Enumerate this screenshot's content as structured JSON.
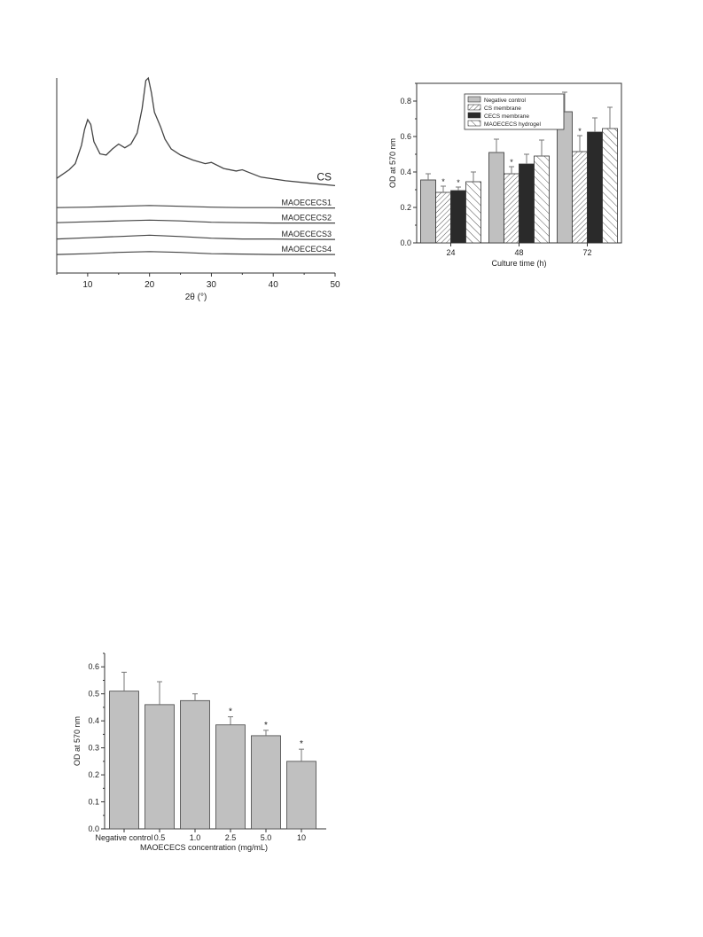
{
  "chart_data": [
    {
      "type": "line",
      "id": "xrd",
      "xlabel": "2θ (°)",
      "ylabel": "",
      "xlim": [
        5,
        50
      ],
      "xticks": [
        10,
        20,
        30,
        40,
        50
      ],
      "grid": false,
      "series": [
        {
          "name": "CS",
          "x": [
            5,
            7,
            8,
            9,
            9.5,
            10,
            10.5,
            11,
            12,
            13,
            14,
            15,
            16,
            17,
            18,
            18.8,
            19.4,
            19.8,
            20.3,
            20.8,
            21.3,
            21.8,
            22.5,
            23.5,
            25,
            27,
            29,
            30,
            32,
            34,
            35,
            36,
            38,
            42,
            46,
            50
          ],
          "y": [
            0.18,
            0.25,
            0.3,
            0.45,
            0.58,
            0.66,
            0.62,
            0.48,
            0.38,
            0.37,
            0.42,
            0.46,
            0.43,
            0.46,
            0.55,
            0.75,
            0.98,
            1.0,
            0.88,
            0.72,
            0.66,
            0.6,
            0.5,
            0.42,
            0.37,
            0.33,
            0.3,
            0.31,
            0.26,
            0.24,
            0.25,
            0.23,
            0.19,
            0.16,
            0.14,
            0.12
          ]
        },
        {
          "name": "MAOECECS1",
          "x": [
            5,
            10,
            15,
            20,
            25,
            30,
            35,
            40,
            45,
            50
          ],
          "y": [
            0.08,
            0.09,
            0.11,
            0.13,
            0.11,
            0.09,
            0.08,
            0.08,
            0.07,
            0.07
          ]
        },
        {
          "name": "MAOECECS2",
          "x": [
            5,
            10,
            15,
            20,
            25,
            30,
            35,
            40,
            45,
            50
          ],
          "y": [
            0.08,
            0.1,
            0.12,
            0.14,
            0.12,
            0.09,
            0.08,
            0.07,
            0.07,
            0.07
          ]
        },
        {
          "name": "MAOECECS3",
          "x": [
            5,
            10,
            15,
            20,
            25,
            30,
            35,
            40,
            45,
            50
          ],
          "y": [
            0.07,
            0.1,
            0.13,
            0.16,
            0.13,
            0.09,
            0.07,
            0.07,
            0.06,
            0.06
          ]
        },
        {
          "name": "MAOECECS4",
          "x": [
            5,
            10,
            15,
            20,
            25,
            30,
            35,
            40,
            45,
            50
          ],
          "y": [
            0.06,
            0.08,
            0.11,
            0.13,
            0.11,
            0.08,
            0.07,
            0.06,
            0.06,
            0.06
          ]
        }
      ]
    },
    {
      "type": "bar",
      "id": "od-time",
      "xlabel": "Culture time (h)",
      "ylabel": "OD at  570 nm",
      "ylim": [
        0,
        0.9
      ],
      "yticks": [
        "0.0",
        "0.2",
        "0.4",
        "0.6",
        "0.8"
      ],
      "categories": [
        "24",
        "48",
        "72"
      ],
      "legend": "top-left",
      "series": [
        {
          "name": "Negative control",
          "values": [
            0.355,
            0.51,
            0.74
          ],
          "errors": [
            0.035,
            0.075,
            0.11
          ],
          "fill": "#c0c0c0",
          "pattern": "solid",
          "stars": [
            false,
            false,
            false
          ]
        },
        {
          "name": "CS membrane",
          "values": [
            0.285,
            0.39,
            0.515
          ],
          "errors": [
            0.035,
            0.04,
            0.09
          ],
          "fill": "#ffffff",
          "pattern": "hatch-dense",
          "stars": [
            true,
            true,
            true
          ]
        },
        {
          "name": "CECS membrane",
          "values": [
            0.295,
            0.445,
            0.625
          ],
          "errors": [
            0.02,
            0.055,
            0.08
          ],
          "fill": "#2a2a2a",
          "pattern": "solid",
          "stars": [
            true,
            false,
            false
          ]
        },
        {
          "name": "MAOECECS hydrogel",
          "values": [
            0.345,
            0.49,
            0.645
          ],
          "errors": [
            0.055,
            0.09,
            0.12
          ],
          "fill": "#ffffff",
          "pattern": "hatch-sparse",
          "stars": [
            false,
            false,
            false
          ]
        }
      ],
      "star_label": "*"
    },
    {
      "type": "bar",
      "id": "od-conc",
      "xlabel": "MAOECECS concentration (mg/mL)",
      "ylabel": "OD at 570 nm",
      "ylim": [
        0,
        0.65
      ],
      "yticks": [
        "0.0",
        "0.1",
        "0.2",
        "0.3",
        "0.4",
        "0.5",
        "0.6"
      ],
      "categories": [
        "Negative control",
        "0.5",
        "1.0",
        "2.5",
        "5.0",
        "10"
      ],
      "series": [
        {
          "name": "",
          "values": [
            0.51,
            0.46,
            0.475,
            0.385,
            0.345,
            0.25
          ],
          "errors": [
            0.07,
            0.085,
            0.025,
            0.03,
            0.02,
            0.045
          ],
          "fill": "#c0c0c0",
          "stars": [
            false,
            false,
            false,
            true,
            true,
            true
          ]
        }
      ],
      "star_label": "*"
    }
  ]
}
